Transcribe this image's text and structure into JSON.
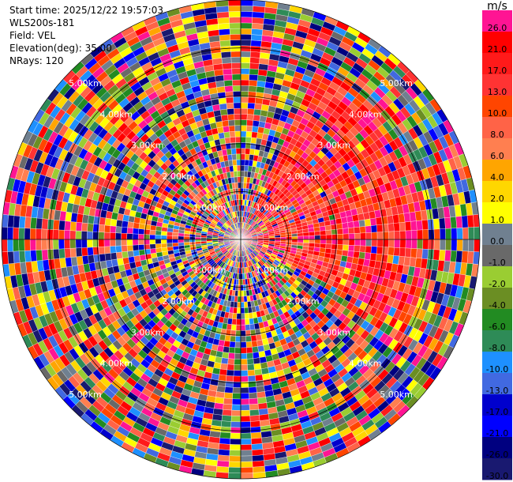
{
  "header": {
    "start_time": "Start time: 2025/12/22 19:57:03",
    "device": "WLS200s-181",
    "field": "Field: VEL",
    "elevation": "Elevation(deg): 35.00",
    "nrays": "NRays: 120"
  },
  "chart_data": {
    "type": "heatmap",
    "projection": "polar",
    "field": "VEL",
    "units": "m/s",
    "n_rays": 120,
    "elevation_deg": 35.0,
    "max_range_km": 5.0,
    "ring_labels": [
      "1.00km",
      "2.00km",
      "3.00km",
      "4.00km",
      "5.00km"
    ],
    "colorbar": {
      "unit": "m/s",
      "ticks": [
        "26.0",
        "21.0",
        "17.0",
        "13.0",
        "10.0",
        "8.0",
        "6.0",
        "4.0",
        "2.0",
        "1.0",
        "0.0",
        "-1.0",
        "-2.0",
        "-4.0",
        "-6.0",
        "-8.0",
        "-10.0",
        "-13.0",
        "-17.0",
        "-21.0",
        "-26.0",
        "-30.0"
      ],
      "colors": [
        "#ff1493",
        "#ff0000",
        "#ff1a1a",
        "#ff3333",
        "#ff4500",
        "#ff6347",
        "#ff7f50",
        "#ffa500",
        "#ffd700",
        "#ffff00",
        "#708090",
        "#696969",
        "#9acd32",
        "#6b8e23",
        "#228b22",
        "#2e8b57",
        "#1e90ff",
        "#4169e1",
        "#0000cd",
        "#0000ff",
        "#000080",
        "#191970"
      ]
    },
    "notes": "Radial velocity PPI scan; sector toward the north-east to east shows strongly positive (pink/red) velocities, remainder mostly noisy."
  }
}
